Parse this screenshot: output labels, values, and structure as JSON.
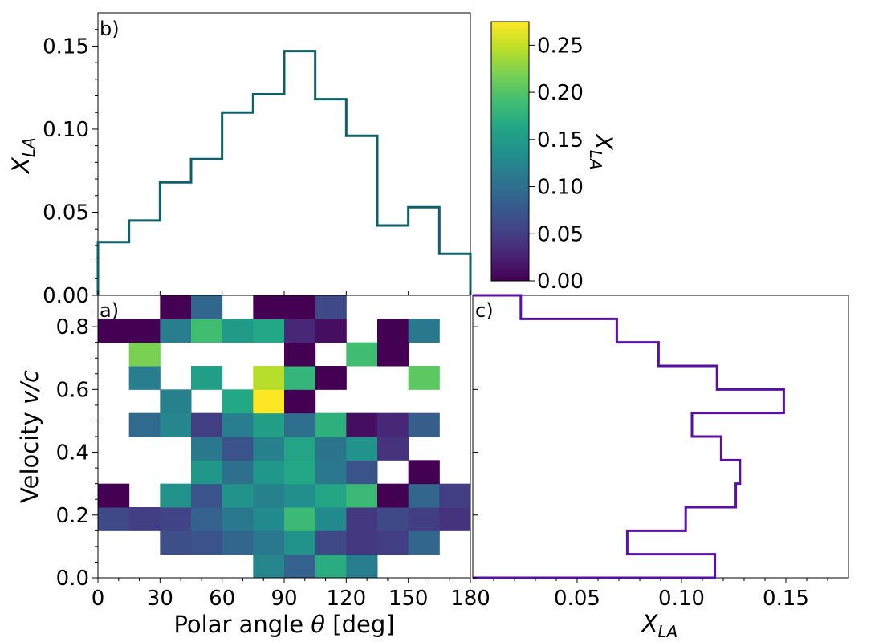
{
  "chart_data": [
    {
      "id": "a",
      "type": "heatmap",
      "panel_label": "a)",
      "xlabel": "Polar angle θ [deg]",
      "ylabel": "Velocity v/c",
      "xlim": [
        0,
        180
      ],
      "ylim": [
        0,
        0.9
      ],
      "x_ticks": [
        0,
        30,
        60,
        90,
        120,
        150,
        180
      ],
      "x_tick_labels": [
        "0",
        "30",
        "60",
        "90",
        "120",
        "150",
        "180"
      ],
      "y_ticks": [
        0.0,
        0.2,
        0.4,
        0.6,
        0.8
      ],
      "y_tick_labels": [
        "0.0",
        "0.2",
        "0.4",
        "0.6",
        "0.8"
      ],
      "x_bin_width": 15,
      "y_bin_height": 0.075,
      "colormap": "viridis",
      "empty_bins": "blank",
      "values": [
        [
          null,
          null,
          null,
          null,
          null,
          0.125,
          0.085,
          0.17,
          0.115,
          null,
          null,
          null
        ],
        [
          null,
          null,
          0.065,
          0.07,
          0.09,
          0.11,
          0.14,
          0.06,
          0.045,
          0.05,
          0.09,
          null
        ],
        [
          0.06,
          0.05,
          0.055,
          0.085,
          0.11,
          0.13,
          0.185,
          0.13,
          0.045,
          0.06,
          0.05,
          0.04
        ],
        [
          0.0,
          null,
          0.14,
          0.07,
          0.14,
          0.12,
          0.135,
          0.16,
          0.185,
          0.0,
          0.09,
          0.05
        ],
        [
          null,
          null,
          null,
          0.145,
          0.1,
          0.145,
          0.165,
          0.11,
          0.07,
          null,
          0.0,
          null
        ],
        [
          null,
          null,
          null,
          0.11,
          0.07,
          0.12,
          0.16,
          0.105,
          0.14,
          0.04,
          null,
          null
        ],
        [
          null,
          0.095,
          0.125,
          0.05,
          0.115,
          0.155,
          0.1,
          0.175,
          0.01,
          0.03,
          0.08,
          null
        ],
        [
          null,
          null,
          0.12,
          null,
          0.165,
          0.275,
          0.0,
          null,
          null,
          null,
          null,
          null
        ],
        [
          null,
          0.115,
          null,
          0.155,
          null,
          0.245,
          0.18,
          0.0,
          null,
          null,
          0.205,
          null
        ],
        [
          null,
          0.22,
          null,
          null,
          null,
          null,
          0.0,
          null,
          0.19,
          0.0,
          null,
          null
        ],
        [
          0.0,
          0.0,
          0.115,
          0.19,
          0.15,
          0.165,
          0.03,
          0.01,
          null,
          0.0,
          0.11,
          null
        ],
        [
          null,
          null,
          0.0,
          0.09,
          null,
          0.0,
          0.0,
          0.06,
          null,
          null,
          null,
          null
        ]
      ]
    },
    {
      "id": "b",
      "type": "step",
      "panel_label": "b)",
      "xlabel": "",
      "ylabel": "X_LA",
      "xlim": [
        0,
        180
      ],
      "ylim": [
        0,
        0.17
      ],
      "y_ticks": [
        0.0,
        0.05,
        0.1,
        0.15
      ],
      "y_tick_labels": [
        "0.00",
        "0.05",
        "0.10",
        "0.15"
      ],
      "bin_edges": [
        0,
        15,
        30,
        45,
        60,
        75,
        90,
        105,
        120,
        135,
        150,
        165,
        180
      ],
      "values": [
        0.032,
        0.045,
        0.068,
        0.082,
        0.11,
        0.121,
        0.147,
        0.118,
        0.096,
        0.042,
        0.053,
        0.025
      ],
      "color": "#0f6068"
    },
    {
      "id": "c",
      "type": "step",
      "orientation": "horizontal",
      "panel_label": "c)",
      "xlabel": "X_LA",
      "ylabel": "",
      "xlim": [
        0,
        0.18
      ],
      "ylim": [
        0,
        0.9
      ],
      "x_ticks": [
        0.05,
        0.1,
        0.15
      ],
      "x_tick_labels": [
        "0.05",
        "0.10",
        "0.15"
      ],
      "bin_edges": [
        0,
        0.075,
        0.15,
        0.225,
        0.3,
        0.375,
        0.45,
        0.525,
        0.6,
        0.675,
        0.75,
        0.825,
        0.9
      ],
      "values": [
        0.116,
        0.074,
        0.102,
        0.126,
        0.128,
        0.119,
        0.105,
        0.149,
        0.117,
        0.089,
        0.069,
        0.023
      ],
      "color": "#5a0fa8"
    },
    {
      "id": "colorbar",
      "type": "colorbar",
      "label": "X_LA",
      "range": [
        0,
        0.275
      ],
      "ticks": [
        0.0,
        0.05,
        0.1,
        0.15,
        0.2,
        0.25
      ],
      "tick_labels": [
        "0.00",
        "0.05",
        "0.10",
        "0.15",
        "0.20",
        "0.25"
      ]
    }
  ],
  "labels": {
    "b_ylabel_main": "X",
    "b_ylabel_sub": "LA",
    "c_xlabel_main": "X",
    "c_xlabel_sub": "LA",
    "cb_label_main": "X",
    "cb_label_sub": "LA",
    "a_ylabel_pre": "Velocity ",
    "a_ylabel_var": "v/c",
    "a_xlabel_pre": "Polar angle ",
    "a_xlabel_var": "θ",
    "a_xlabel_post": " [deg]"
  }
}
